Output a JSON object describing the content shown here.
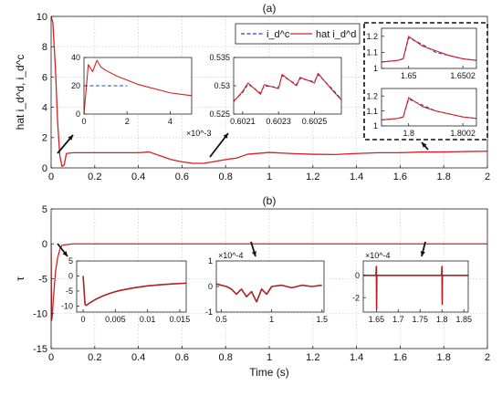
{
  "chart_data": [
    {
      "id": "top",
      "type": "line",
      "title": "(a)",
      "ylabel": "hat i_d^d, i_d^c",
      "xlim": [
        0,
        2
      ],
      "ylim": [
        0,
        10
      ],
      "xticks": [
        "0",
        "0.2",
        "0.4",
        "0.6",
        "0.8",
        "1",
        "1.2",
        "1.4",
        "1.6",
        "1.8",
        "2"
      ],
      "yticks": [
        "0",
        "2",
        "4",
        "6",
        "8",
        "10"
      ],
      "grid": true,
      "legend": {
        "placement": "top-right",
        "entries": [
          "i_d^c",
          "hat i_d^d"
        ]
      },
      "series": [
        {
          "name": "hat i_d^d",
          "color": "#d62020",
          "x": [
            0,
            0.008,
            0.02,
            0.03,
            0.04,
            0.05,
            0.06,
            0.07,
            0.1,
            0.2,
            0.3,
            0.4,
            0.45,
            0.5,
            0.55,
            0.6,
            0.65,
            0.7,
            0.75,
            0.8,
            0.85,
            0.9,
            1.0,
            1.1,
            1.2,
            1.3,
            1.4,
            1.5,
            1.6,
            1.7,
            1.8,
            1.9,
            2.0
          ],
          "y": [
            10,
            9.6,
            6.5,
            3.0,
            0.8,
            0.1,
            0.2,
            0.95,
            1.0,
            1.0,
            1.0,
            1.0,
            1.05,
            0.8,
            0.55,
            0.4,
            0.3,
            0.3,
            0.42,
            0.55,
            0.65,
            0.9,
            1.02,
            0.95,
            0.9,
            0.88,
            0.95,
            1.0,
            1.0,
            1.05,
            1.05,
            1.08,
            1.1
          ]
        }
      ]
    },
    {
      "id": "top-inset-1",
      "type": "line",
      "xlim": [
        0,
        5
      ],
      "ylim": [
        0,
        40
      ],
      "xticks": [
        "0",
        "2",
        "4"
      ],
      "yticks": [
        "0",
        "20",
        "40"
      ],
      "x_exponent": "×10^-3",
      "series": [
        {
          "name": "hat i_d^d",
          "color": "#d62020",
          "x": [
            0,
            0.2,
            0.4,
            0.6,
            0.8,
            1.0,
            1.5,
            2.0,
            2.5,
            3.0,
            3.5,
            4.0,
            4.5,
            5.0
          ],
          "y": [
            0,
            35,
            30,
            38,
            33,
            31,
            27,
            24,
            21,
            19,
            17,
            15,
            14,
            13
          ]
        },
        {
          "name": "i_d^c",
          "color": "#2a3fbf",
          "x": [
            0,
            2
          ],
          "y": [
            20,
            20
          ]
        }
      ]
    },
    {
      "id": "top-inset-2",
      "type": "line",
      "xlim": [
        0.60205,
        0.60265
      ],
      "ylim": [
        0.525,
        0.535
      ],
      "xticks": [
        "0.6021",
        "0.6023",
        "0.6025"
      ],
      "yticks": [
        "0.525",
        "0.53",
        "0.535"
      ],
      "series": [
        {
          "name": "hat i_d^d",
          "color": "#d62020",
          "x": [
            0.60205,
            0.6021,
            0.60213,
            0.6022,
            0.60222,
            0.6023,
            0.60232,
            0.6024,
            0.60242,
            0.6025,
            0.60252,
            0.6026,
            0.60265
          ],
          "y": [
            0.5272,
            0.529,
            0.5305,
            0.5285,
            0.5302,
            0.5295,
            0.532,
            0.53,
            0.5315,
            0.5305,
            0.5322,
            0.5292,
            0.5275
          ]
        },
        {
          "name": "i_d^c",
          "color": "#2a3fbf",
          "x": [
            0.60205,
            0.6021,
            0.60213,
            0.6022,
            0.60222,
            0.6023,
            0.60232,
            0.6024,
            0.60242,
            0.6025,
            0.60252,
            0.6026,
            0.60265
          ],
          "y": [
            0.5273,
            0.5288,
            0.5303,
            0.5287,
            0.53,
            0.5297,
            0.5318,
            0.5302,
            0.5313,
            0.5307,
            0.532,
            0.5294,
            0.5276
          ]
        }
      ]
    },
    {
      "id": "top-inset-3",
      "type": "line",
      "xlim": [
        1.6499,
        1.65025
      ],
      "ylim": [
        1.0,
        1.25
      ],
      "xticks": [
        "1.65",
        "1.6502"
      ],
      "yticks": [
        "1",
        "1.1",
        "1.2"
      ],
      "series": [
        {
          "name": "hat i_d^d",
          "color": "#d62020",
          "x": [
            1.6499,
            1.64996,
            1.64998,
            1.65,
            1.65005,
            1.6501,
            1.65015,
            1.6502,
            1.65025
          ],
          "y": [
            1.04,
            1.05,
            1.06,
            1.2,
            1.14,
            1.11,
            1.08,
            1.06,
            1.05
          ]
        },
        {
          "name": "i_d^c",
          "color": "#2a3fbf",
          "x": [
            1.6499,
            1.64996,
            1.64998,
            1.65,
            1.65005,
            1.6501,
            1.65015,
            1.6502,
            1.65025
          ],
          "y": [
            1.04,
            1.05,
            1.06,
            1.19,
            1.15,
            1.1,
            1.08,
            1.06,
            1.05
          ]
        }
      ]
    },
    {
      "id": "top-inset-4",
      "type": "line",
      "xlim": [
        1.7999,
        1.80025
      ],
      "ylim": [
        1.0,
        1.25
      ],
      "xticks": [
        "1.8",
        "1.8002"
      ],
      "yticks": [
        "1",
        "1.1",
        "1.2"
      ],
      "series": [
        {
          "name": "hat i_d^d",
          "color": "#d62020",
          "x": [
            1.7999,
            1.79996,
            1.79998,
            1.8,
            1.80005,
            1.8001,
            1.80015,
            1.8002,
            1.80025
          ],
          "y": [
            1.04,
            1.05,
            1.06,
            1.19,
            1.13,
            1.1,
            1.08,
            1.06,
            1.05
          ]
        },
        {
          "name": "i_d^c",
          "color": "#2a3fbf",
          "x": [
            1.7999,
            1.79996,
            1.79998,
            1.8,
            1.80005,
            1.8001,
            1.80015,
            1.8002,
            1.80025
          ],
          "y": [
            1.04,
            1.05,
            1.06,
            1.18,
            1.14,
            1.1,
            1.08,
            1.06,
            1.05
          ]
        }
      ]
    },
    {
      "id": "bottom",
      "type": "line",
      "title": "(b)",
      "xlabel": "Time (s)",
      "ylabel": "τ",
      "xlim": [
        0,
        2
      ],
      "ylim": [
        -15,
        5
      ],
      "xticks": [
        "0",
        "0.2",
        "0.4",
        "0.6",
        "0.8",
        "1",
        "1.2",
        "1.4",
        "1.6",
        "1.8",
        "2"
      ],
      "yticks": [
        "-15",
        "-10",
        "-5",
        "0",
        "5"
      ],
      "grid": true,
      "series": [
        {
          "name": "τ",
          "color": "#d62020",
          "x": [
            0,
            0.002,
            0.005,
            0.01,
            0.02,
            0.03,
            0.04,
            0.05,
            0.1,
            0.5,
            1.0,
            1.5,
            2.0
          ],
          "y": [
            0,
            -11,
            -10.5,
            -8,
            -4,
            -2,
            -0.8,
            -0.2,
            0,
            0,
            0,
            0,
            0
          ]
        }
      ]
    },
    {
      "id": "bottom-inset-1",
      "type": "line",
      "xlim": [
        -0.001,
        0.016
      ],
      "ylim": [
        -12,
        5
      ],
      "xticks": [
        "0",
        "0.005",
        "0.01",
        "0.015"
      ],
      "yticks": [
        "-10",
        "-5",
        "0",
        "5"
      ],
      "series": [
        {
          "name": "τ",
          "color": "#b02020",
          "x": [
            0,
            0.0003,
            0.0005,
            0.001,
            0.002,
            0.003,
            0.004,
            0.005,
            0.006,
            0.008,
            0.01,
            0.012,
            0.014,
            0.016
          ],
          "y": [
            0,
            -9.5,
            -9.8,
            -9.0,
            -7.7,
            -6.7,
            -5.9,
            -5.2,
            -4.7,
            -3.9,
            -3.3,
            -2.9,
            -2.6,
            -2.4
          ]
        }
      ]
    },
    {
      "id": "bottom-inset-2",
      "type": "line",
      "xlim": [
        0.45,
        1.52
      ],
      "ylim": [
        -1,
        1
      ],
      "xticks": [
        "0.5",
        "1",
        "1.5"
      ],
      "yticks": [
        "-1",
        "0",
        "1"
      ],
      "y_exponent": "×10^-4",
      "series": [
        {
          "name": "τ",
          "color": "#b02020",
          "x": [
            0.45,
            0.55,
            0.6,
            0.65,
            0.7,
            0.75,
            0.8,
            0.85,
            0.9,
            0.95,
            1.0,
            1.1,
            1.2,
            1.3,
            1.4,
            1.5
          ],
          "y": [
            0.1,
            0.0,
            -0.1,
            -0.3,
            -0.1,
            -0.4,
            -0.2,
            -0.6,
            -0.1,
            -0.3,
            0.0,
            0.05,
            -0.05,
            0.05,
            0.0,
            0.05
          ]
        }
      ]
    },
    {
      "id": "bottom-inset-3",
      "type": "line",
      "xlim": [
        1.62,
        1.86
      ],
      "ylim": [
        -3.3,
        1.3
      ],
      "xticks": [
        "1.65",
        "1.7",
        "1.75",
        "1.8",
        "1.85"
      ],
      "yticks": [
        "-2",
        "0"
      ],
      "y_exponent": "×10^-4",
      "series": [
        {
          "name": "τ",
          "color": "#b02020",
          "x": [
            1.62,
            1.649,
            1.65,
            1.6505,
            1.651,
            1.7,
            1.75,
            1.799,
            1.8,
            1.8005,
            1.801,
            1.86
          ],
          "y": [
            0,
            0,
            0.8,
            -3.0,
            0,
            0,
            0,
            0,
            0.8,
            -2.6,
            0,
            0
          ]
        }
      ]
    }
  ]
}
